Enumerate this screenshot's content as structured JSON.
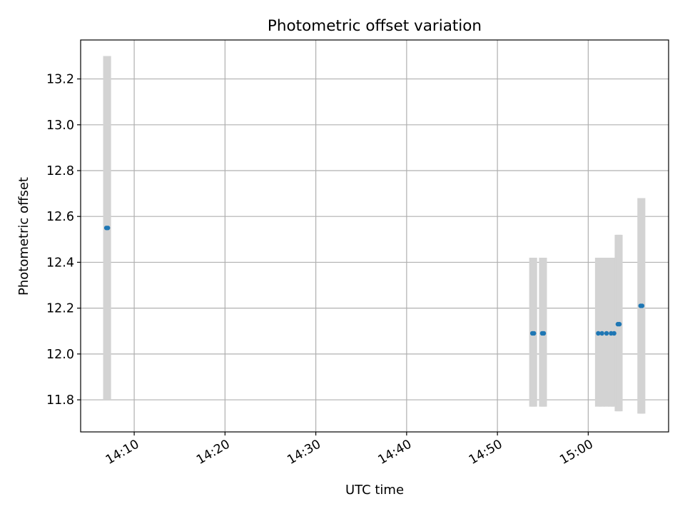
{
  "chart_data": {
    "type": "scatter",
    "title": "Photometric offset variation",
    "xlabel": "UTC time",
    "ylabel": "Photometric offset",
    "x_axis_kind": "time",
    "xlim": [
      "14:04:06",
      "15:08:51"
    ],
    "ylim": [
      11.66,
      13.37
    ],
    "x_ticks": [
      "14:10",
      "14:20",
      "14:30",
      "14:40",
      "14:50",
      "15:00"
    ],
    "y_ticks": [
      11.8,
      12.0,
      12.2,
      12.4,
      12.6,
      12.8,
      13.0,
      13.2
    ],
    "y_tick_labels": [
      "11.8",
      "12.0",
      "12.2",
      "12.4",
      "12.6",
      "12.8",
      "13.0",
      "13.2"
    ],
    "grid": true,
    "points_color": "#1f77b4",
    "errorbar_color": "#d3d3d3",
    "points": [
      {
        "time": "14:06:56",
        "value": 12.55,
        "low": 11.8,
        "high": 13.3
      },
      {
        "time": "14:07:06",
        "value": 12.55,
        "low": 11.8,
        "high": 13.3
      },
      {
        "time": "14:53:51",
        "value": 12.09,
        "low": 11.77,
        "high": 12.42
      },
      {
        "time": "14:54:01",
        "value": 12.09,
        "low": 11.77,
        "high": 12.42
      },
      {
        "time": "14:54:56",
        "value": 12.09,
        "low": 11.77,
        "high": 12.42
      },
      {
        "time": "14:55:06",
        "value": 12.09,
        "low": 11.77,
        "high": 12.42
      },
      {
        "time": "15:01:06",
        "value": 12.09,
        "low": 11.77,
        "high": 12.42
      },
      {
        "time": "15:01:31",
        "value": 12.09,
        "low": 11.77,
        "high": 12.42
      },
      {
        "time": "15:02:01",
        "value": 12.09,
        "low": 11.77,
        "high": 12.42
      },
      {
        "time": "15:02:31",
        "value": 12.09,
        "low": 11.77,
        "high": 12.42
      },
      {
        "time": "15:02:51",
        "value": 12.09,
        "low": 11.77,
        "high": 12.42
      },
      {
        "time": "15:03:16",
        "value": 12.13,
        "low": 11.75,
        "high": 12.52
      },
      {
        "time": "15:03:26",
        "value": 12.13,
        "low": 11.75,
        "high": 12.52
      },
      {
        "time": "15:05:46",
        "value": 12.21,
        "low": 11.74,
        "high": 12.68
      },
      {
        "time": "15:05:56",
        "value": 12.21,
        "low": 11.74,
        "high": 12.68
      }
    ]
  }
}
